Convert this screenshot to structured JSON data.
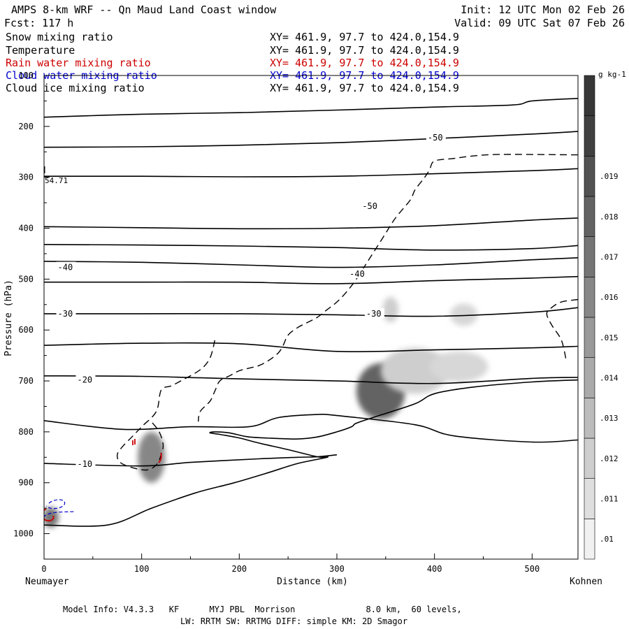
{
  "header": {
    "title": "AMPS 8-km WRF -- Qn Maud Land Coast window",
    "forecast": "Fcst:  117 h",
    "init": "Init: 12 UTC Mon 02 Feb 26",
    "valid": "Valid: 09 UTC Sat 07 Feb 26"
  },
  "fields": [
    {
      "name": "Snow mixing ratio",
      "coords": "XY= 461.9, 97.7 to 424.0,154.9",
      "color": "#000000"
    },
    {
      "name": "Temperature",
      "coords": "XY= 461.9, 97.7 to 424.0,154.9",
      "color": "#000000"
    },
    {
      "name": "Rain water mixing ratio",
      "coords": "XY= 461.9, 97.7 to 424.0,154.9",
      "color": "#cc0000"
    },
    {
      "name": "Cloud water mixing ratio",
      "coords": "XY= 461.9, 97.7 to 424.0,154.9",
      "color": "#0000cc"
    },
    {
      "name": "Cloud ice mixing ratio",
      "coords": "XY= 461.9, 97.7 to 424.0,154.9",
      "color": "#000000"
    }
  ],
  "footer": {
    "line1": "Model Info: V4.3.3   KF      MYJ PBL  Morrison              8.0 km,  60 levels,",
    "line2": "LW: RRTM SW: RRTMG   DIFF: simple KM: 2D Smagor"
  },
  "chart_data": {
    "type": "contour_cross_section",
    "xlabel": "Distance (km)",
    "ylabel": "Pressure (hPa)",
    "xlim": [
      0,
      547
    ],
    "ylim": [
      1050,
      100
    ],
    "x_ticks": [
      0,
      100,
      200,
      300,
      400,
      500
    ],
    "y_ticks": [
      100,
      200,
      300,
      400,
      500,
      600,
      700,
      800,
      900,
      1000
    ],
    "x_endpoints": {
      "left": "Neumayer",
      "right": "Kohnen"
    },
    "annotation": "54.71",
    "colorbar": {
      "unit": "g kg-1",
      "unit_exp": "-1",
      "ticks": [
        ".01",
        ".011",
        ".012",
        ".013",
        ".014",
        ".015",
        ".016",
        ".017",
        ".018",
        ".019"
      ],
      "levels": 12
    },
    "isotherm_labels": [
      {
        "text": "-50",
        "x": 393,
        "p": 222
      },
      {
        "text": "-50",
        "x": 326,
        "p": 357
      },
      {
        "text": "-40",
        "x": 14,
        "p": 477
      },
      {
        "text": "-40",
        "x": 313,
        "p": 490
      },
      {
        "text": "-30",
        "x": 14,
        "p": 568
      },
      {
        "text": "-30",
        "x": 330,
        "p": 568
      },
      {
        "text": "-20",
        "x": 34,
        "p": 698
      },
      {
        "text": "-10",
        "x": 34,
        "p": 863
      }
    ],
    "isotherms": [
      [
        [
          0,
          182
        ],
        [
          100,
          176
        ],
        [
          200,
          173
        ],
        [
          300,
          168
        ],
        [
          400,
          162
        ],
        [
          480,
          158
        ],
        [
          500,
          150
        ],
        [
          547,
          145
        ]
      ],
      [
        [
          0,
          241
        ],
        [
          100,
          240
        ],
        [
          200,
          237
        ],
        [
          300,
          232
        ],
        [
          400,
          224
        ],
        [
          500,
          215
        ],
        [
          547,
          210
        ]
      ],
      [
        [
          0,
          298
        ],
        [
          100,
          298
        ],
        [
          200,
          299
        ],
        [
          300,
          298
        ],
        [
          400,
          293
        ],
        [
          500,
          287
        ],
        [
          547,
          283
        ]
      ],
      [
        [
          0,
          397
        ],
        [
          100,
          399
        ],
        [
          200,
          401
        ],
        [
          300,
          400
        ],
        [
          400,
          395
        ],
        [
          500,
          384
        ],
        [
          547,
          380
        ]
      ],
      [
        [
          0,
          432
        ],
        [
          100,
          433
        ],
        [
          200,
          435
        ],
        [
          300,
          438
        ],
        [
          400,
          443
        ],
        [
          500,
          440
        ],
        [
          547,
          434
        ]
      ],
      [
        [
          0,
          465
        ],
        [
          100,
          467
        ],
        [
          200,
          472
        ],
        [
          300,
          477
        ],
        [
          400,
          472
        ],
        [
          500,
          462
        ],
        [
          547,
          458
        ]
      ],
      [
        [
          0,
          506
        ],
        [
          100,
          506
        ],
        [
          200,
          506
        ],
        [
          300,
          509
        ],
        [
          400,
          503
        ],
        [
          500,
          498
        ],
        [
          547,
          495
        ]
      ],
      [
        [
          0,
          568
        ],
        [
          100,
          568
        ],
        [
          200,
          568
        ],
        [
          300,
          570
        ],
        [
          400,
          573
        ],
        [
          500,
          565
        ],
        [
          547,
          556
        ]
      ],
      [
        [
          0,
          630
        ],
        [
          100,
          626
        ],
        [
          200,
          627
        ],
        [
          300,
          642
        ],
        [
          400,
          639
        ],
        [
          500,
          635
        ],
        [
          547,
          632
        ]
      ],
      [
        [
          0,
          690
        ],
        [
          100,
          691
        ],
        [
          200,
          696
        ],
        [
          300,
          700
        ],
        [
          400,
          705
        ],
        [
          500,
          695
        ],
        [
          547,
          693
        ]
      ],
      [
        [
          0,
          778
        ],
        [
          80,
          795
        ],
        [
          150,
          790
        ],
        [
          210,
          790
        ],
        [
          240,
          772
        ],
        [
          280,
          766
        ],
        [
          300,
          768
        ],
        [
          380,
          786
        ],
        [
          420,
          808
        ],
        [
          500,
          820
        ],
        [
          547,
          816
        ]
      ],
      [
        [
          0,
          862
        ],
        [
          100,
          867
        ],
        [
          150,
          860
        ],
        [
          220,
          853
        ],
        [
          260,
          850
        ],
        [
          280,
          849
        ],
        [
          300,
          845
        ]
      ]
    ],
    "terrain_outline": [
      [
        0,
        983
      ],
      [
        65,
        983
      ],
      [
        110,
        950
      ],
      [
        155,
        920
      ],
      [
        195,
        900
      ],
      [
        230,
        880
      ],
      [
        260,
        862
      ],
      [
        290,
        850
      ],
      [
        280,
        849
      ],
      [
        250,
        835
      ],
      [
        220,
        822
      ],
      [
        200,
        812
      ],
      [
        180,
        805
      ],
      [
        170,
        802
      ],
      [
        175,
        800
      ],
      [
        190,
        802
      ],
      [
        210,
        810
      ],
      [
        240,
        813
      ],
      [
        260,
        814
      ],
      [
        280,
        810
      ],
      [
        300,
        800
      ],
      [
        315,
        790
      ],
      [
        320,
        783
      ],
      [
        340,
        770
      ],
      [
        380,
        745
      ],
      [
        400,
        725
      ],
      [
        440,
        712
      ],
      [
        500,
        702
      ],
      [
        547,
        698
      ]
    ],
    "dashed_contours": [
      [
        [
          547,
          540
        ],
        [
          530,
          545
        ],
        [
          520,
          556
        ],
        [
          515,
          568
        ],
        [
          520,
          590
        ],
        [
          530,
          620
        ],
        [
          535,
          660
        ]
      ],
      [
        [
          547,
          256
        ],
        [
          470,
          255
        ],
        [
          440,
          258
        ],
        [
          420,
          263
        ],
        [
          400,
          268
        ],
        [
          395,
          285
        ],
        [
          390,
          300
        ],
        [
          380,
          325
        ],
        [
          375,
          345
        ],
        [
          360,
          380
        ],
        [
          350,
          410
        ],
        [
          340,
          440
        ],
        [
          330,
          470
        ],
        [
          320,
          500
        ],
        [
          310,
          525
        ],
        [
          300,
          545
        ],
        [
          290,
          560
        ],
        [
          280,
          575
        ],
        [
          270,
          585
        ],
        [
          260,
          595
        ],
        [
          250,
          610
        ],
        [
          245,
          630
        ],
        [
          240,
          645
        ],
        [
          230,
          660
        ],
        [
          220,
          670
        ],
        [
          210,
          675
        ],
        [
          200,
          680
        ],
        [
          190,
          690
        ],
        [
          180,
          700
        ],
        [
          175,
          720
        ],
        [
          170,
          740
        ],
        [
          160,
          760
        ],
        [
          158,
          780
        ]
      ],
      [
        [
          175,
          620
        ],
        [
          170,
          655
        ],
        [
          160,
          678
        ],
        [
          140,
          700
        ],
        [
          130,
          710
        ],
        [
          120,
          718
        ],
        [
          115,
          760
        ],
        [
          100,
          790
        ],
        [
          90,
          810
        ],
        [
          80,
          830
        ],
        [
          75,
          845
        ],
        [
          78,
          860
        ],
        [
          90,
          870
        ],
        [
          105,
          875
        ],
        [
          115,
          865
        ],
        [
          120,
          845
        ],
        [
          122,
          825
        ],
        [
          118,
          800
        ],
        [
          110,
          780
        ]
      ]
    ],
    "shaded_regions": [
      {
        "x": 110,
        "p": 850,
        "rx": 14,
        "rp": 50,
        "level": 0.016
      },
      {
        "x": 7,
        "p": 968,
        "rx": 8,
        "rp": 20,
        "level": 0.017
      },
      {
        "x": 345,
        "p": 720,
        "rx": 25,
        "rp": 55,
        "level": 0.018
      },
      {
        "x": 380,
        "p": 680,
        "rx": 35,
        "rp": 45,
        "level": 0.012
      },
      {
        "x": 425,
        "p": 672,
        "rx": 30,
        "rp": 30,
        "level": 0.0115
      },
      {
        "x": 355,
        "p": 560,
        "rx": 8,
        "rp": 25,
        "level": 0.012
      },
      {
        "x": 430,
        "p": 570,
        "rx": 14,
        "rp": 22,
        "level": 0.0115
      }
    ]
  }
}
